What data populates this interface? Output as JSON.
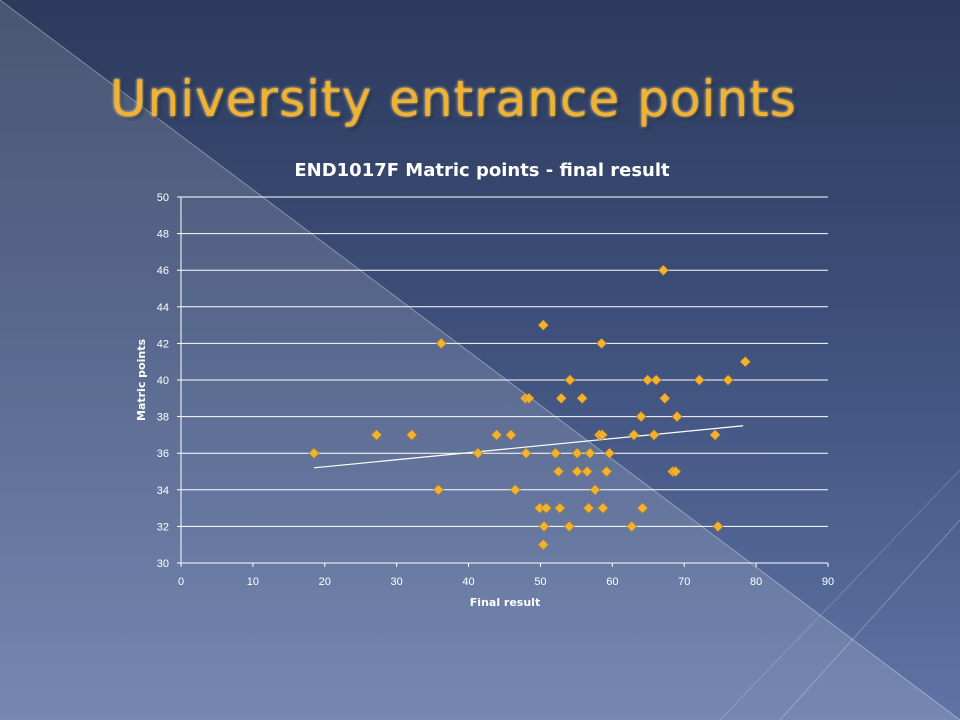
{
  "slide": {
    "title": "University entrance points"
  },
  "colors": {
    "title": "#f2b231",
    "marker": "#f2b231",
    "trendline": "#ffffff",
    "gridline": "#ffffff"
  },
  "chart_data": {
    "type": "scatter",
    "title": "END1017F Matric points - final result",
    "xlabel": "Final result",
    "ylabel": "Matric points",
    "xlim": [
      0,
      90
    ],
    "ylim": [
      30,
      50
    ],
    "xticks": [
      0,
      10,
      20,
      30,
      40,
      50,
      60,
      70,
      80,
      90
    ],
    "yticks": [
      30,
      32,
      34,
      36,
      38,
      40,
      42,
      44,
      46,
      48,
      50
    ],
    "grid": "horizontal",
    "marker": "diamond",
    "points": [
      {
        "x": 18.5,
        "y": 36
      },
      {
        "x": 27.2,
        "y": 37
      },
      {
        "x": 32.1,
        "y": 37
      },
      {
        "x": 35.8,
        "y": 34
      },
      {
        "x": 36.2,
        "y": 42
      },
      {
        "x": 41.3,
        "y": 36
      },
      {
        "x": 43.9,
        "y": 37
      },
      {
        "x": 45.9,
        "y": 37
      },
      {
        "x": 46.5,
        "y": 34
      },
      {
        "x": 47.9,
        "y": 39
      },
      {
        "x": 48.4,
        "y": 39
      },
      {
        "x": 48.0,
        "y": 36
      },
      {
        "x": 49.9,
        "y": 33
      },
      {
        "x": 50.4,
        "y": 43
      },
      {
        "x": 50.5,
        "y": 32
      },
      {
        "x": 50.4,
        "y": 31
      },
      {
        "x": 50.8,
        "y": 33
      },
      {
        "x": 52.1,
        "y": 36
      },
      {
        "x": 52.5,
        "y": 35
      },
      {
        "x": 52.7,
        "y": 33
      },
      {
        "x": 52.9,
        "y": 39
      },
      {
        "x": 54.1,
        "y": 40
      },
      {
        "x": 54.0,
        "y": 32
      },
      {
        "x": 55.1,
        "y": 36
      },
      {
        "x": 55.1,
        "y": 35
      },
      {
        "x": 55.8,
        "y": 39
      },
      {
        "x": 56.5,
        "y": 35
      },
      {
        "x": 56.7,
        "y": 33
      },
      {
        "x": 56.9,
        "y": 36
      },
      {
        "x": 57.6,
        "y": 34
      },
      {
        "x": 58.2,
        "y": 37
      },
      {
        "x": 58.6,
        "y": 37
      },
      {
        "x": 58.5,
        "y": 42
      },
      {
        "x": 58.7,
        "y": 33
      },
      {
        "x": 59.2,
        "y": 35
      },
      {
        "x": 59.6,
        "y": 36
      },
      {
        "x": 62.7,
        "y": 32
      },
      {
        "x": 63.0,
        "y": 37
      },
      {
        "x": 64.0,
        "y": 38
      },
      {
        "x": 64.2,
        "y": 33
      },
      {
        "x": 64.9,
        "y": 40
      },
      {
        "x": 65.8,
        "y": 37
      },
      {
        "x": 66.1,
        "y": 40
      },
      {
        "x": 67.1,
        "y": 46
      },
      {
        "x": 67.3,
        "y": 39
      },
      {
        "x": 68.4,
        "y": 35
      },
      {
        "x": 68.8,
        "y": 35
      },
      {
        "x": 69.0,
        "y": 38
      },
      {
        "x": 72.1,
        "y": 40
      },
      {
        "x": 74.3,
        "y": 37
      },
      {
        "x": 74.7,
        "y": 32
      },
      {
        "x": 76.1,
        "y": 40
      },
      {
        "x": 78.5,
        "y": 41
      }
    ],
    "trendline": {
      "type": "linear",
      "x": [
        18.5,
        78.2
      ],
      "y": [
        35.2,
        37.5
      ]
    }
  }
}
